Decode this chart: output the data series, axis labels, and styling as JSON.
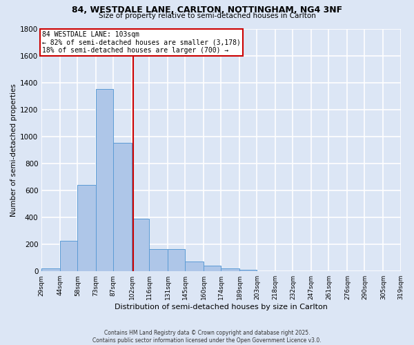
{
  "title_line1": "84, WESTDALE LANE, CARLTON, NOTTINGHAM, NG4 3NF",
  "title_line2": "Size of property relative to semi-detached houses in Carlton",
  "xlabel": "Distribution of semi-detached houses by size in Carlton",
  "ylabel": "Number of semi-detached properties",
  "property_label": "84 WESTDALE LANE: 103sqm",
  "annotation_line1": "← 82% of semi-detached houses are smaller (3,178)",
  "annotation_line2": "18% of semi-detached houses are larger (700) →",
  "property_value": 103,
  "bin_edges": [
    29,
    44,
    58,
    73,
    87,
    102,
    116,
    131,
    145,
    160,
    174,
    189,
    203,
    218,
    232,
    247,
    261,
    276,
    290,
    305,
    319
  ],
  "bin_counts": [
    20,
    225,
    640,
    1350,
    955,
    390,
    165,
    165,
    75,
    40,
    20,
    10,
    0,
    0,
    0,
    0,
    0,
    0,
    0,
    0
  ],
  "bar_color": "#aec6e8",
  "bar_edge_color": "#5b9bd5",
  "vline_color": "#cc0000",
  "annotation_box_color": "#cc0000",
  "background_color": "#dce6f5",
  "fig_background_color": "#dce6f5",
  "grid_color": "#ffffff",
  "ylim": [
    0,
    1800
  ],
  "yticks": [
    0,
    200,
    400,
    600,
    800,
    1000,
    1200,
    1400,
    1600,
    1800
  ],
  "footer_line1": "Contains HM Land Registry data © Crown copyright and database right 2025.",
  "footer_line2": "Contains public sector information licensed under the Open Government Licence v3.0."
}
